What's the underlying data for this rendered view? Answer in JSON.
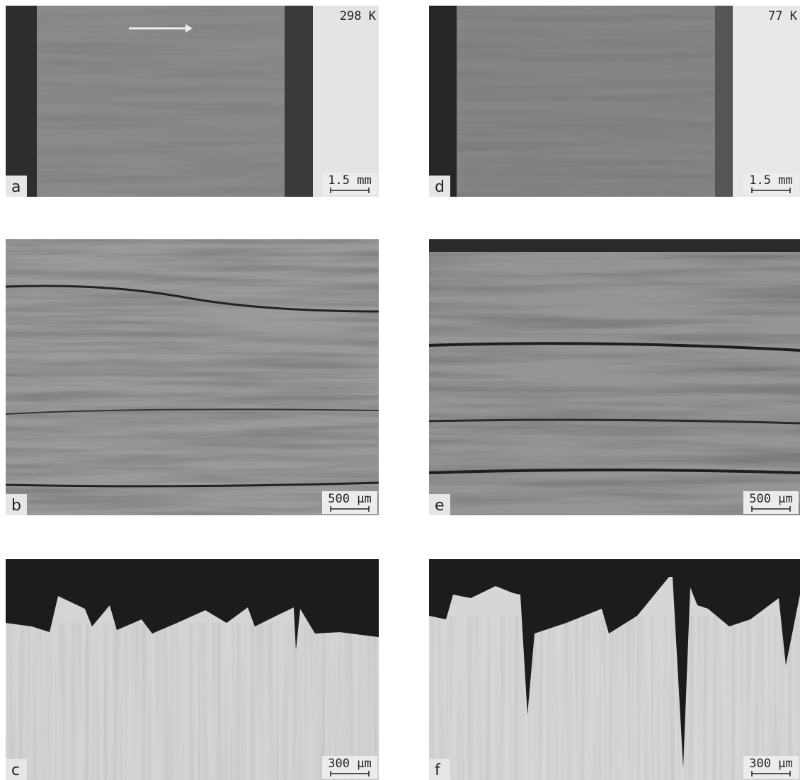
{
  "panels": [
    {
      "label": "a",
      "temperature": "298 K",
      "scale_bar": "1.5 mm"
    },
    {
      "label": "b",
      "scale_bar": "500 µm"
    },
    {
      "label": "c",
      "scale_bar": "300 µm"
    },
    {
      "label": "d",
      "temperature": "77 K",
      "scale_bar": "1.5 mm"
    },
    {
      "label": "e",
      "scale_bar": "500 µm"
    },
    {
      "label": "f",
      "scale_bar": "300 µm"
    }
  ]
}
